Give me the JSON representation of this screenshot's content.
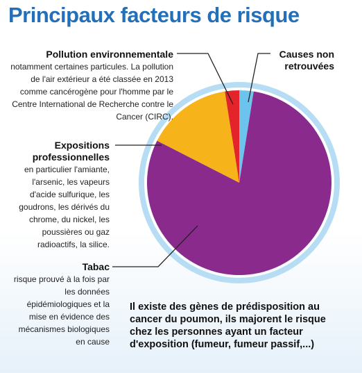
{
  "title": "Principaux facteurs de risque",
  "labels": {
    "pollution": {
      "heading": "Pollution environnementale",
      "text": "notamment certaines particules. La pollution de l'air extérieur a été classée en 2013 comme cancérogène pour l'homme par le Centre International de Recherche contre le Cancer (CIRC)."
    },
    "expositions": {
      "heading": "Expositions professionnelles",
      "text": "en particulier l'amiante, l'arsenic, les vapeurs d'acide sulfurique, les goudrons, les dérivés du chrome, du nickel, les poussières ou gaz radioactifs, la silice."
    },
    "tabac": {
      "heading": "Tabac",
      "text": "risque prouvé à la fois par les données épidémiologiques et la mise en évidence des mécanismes biologiques en cause"
    },
    "causes": {
      "heading": "Causes non retrouvées"
    }
  },
  "note": "Il existe des gènes de prédisposition au cancer du poumon, ils majorent le risque chez les personnes ayant un facteur d'exposition (fumeur, fumeur passif,...)",
  "chart_data": {
    "type": "pie",
    "slices": [
      {
        "label": "Causes non retrouvées",
        "value": 2.5,
        "color": "#6cc3ee"
      },
      {
        "label": "Tabac",
        "value": 80,
        "color": "#8a2a8c"
      },
      {
        "label": "Expositions professionnelles",
        "value": 15,
        "color": "#f6b41a"
      },
      {
        "label": "Pollution environnementale",
        "value": 2.5,
        "color": "#e3242b"
      }
    ],
    "ring_color": "#b7ddf4"
  }
}
